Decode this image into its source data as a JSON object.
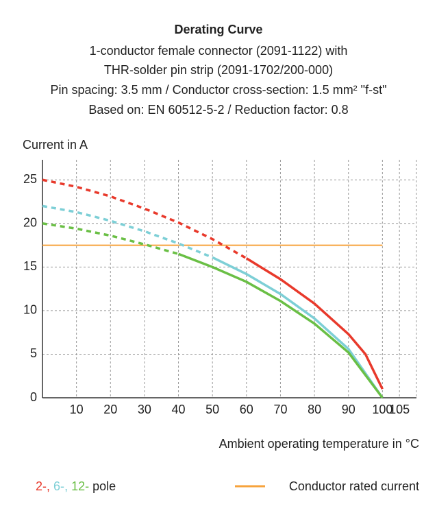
{
  "chart_data": {
    "type": "line",
    "title": "Derating Curve",
    "subtitle": [
      "1-conductor female connector (2091-1122) with",
      "THR-solder pin strip (2091-1702/200-000)",
      "Pin spacing: 3.5 mm / Conductor cross-section: 1.5 mm² \"f-st\"",
      "Based on: EN 60512-5-2 / Reduction factor: 0.8"
    ],
    "y_label": "Current in A",
    "x_label": "Ambient operating temperature in °C",
    "xlim": [
      0,
      110
    ],
    "xticks": [
      10,
      20,
      30,
      40,
      50,
      60,
      70,
      80,
      90,
      100,
      105
    ],
    "ylim": [
      0,
      27.3
    ],
    "yticks": [
      0,
      5,
      10,
      15,
      20,
      25
    ],
    "grid": true,
    "legend_separator": ",",
    "legend_suffix": "pole",
    "series": [
      {
        "name": "2-",
        "color": "#e8392b",
        "x": [
          0,
          10,
          20,
          30,
          40,
          50,
          60,
          70,
          80,
          90,
          95,
          100
        ],
        "values": [
          25,
          24.2,
          23.1,
          21.7,
          20.1,
          18.2,
          16,
          13.6,
          10.8,
          7.3,
          5,
          1
        ]
      },
      {
        "name": "6-",
        "color": "#7dcfd6",
        "x": [
          0,
          10,
          20,
          30,
          40,
          50,
          60,
          70,
          80,
          90,
          100
        ],
        "values": [
          22,
          21.3,
          20.3,
          19.1,
          17.7,
          16.1,
          14.2,
          11.9,
          9.1,
          5.6,
          0
        ]
      },
      {
        "name": "12-",
        "color": "#6abf45",
        "x": [
          0,
          10,
          20,
          30,
          40,
          50,
          60,
          70,
          80,
          90,
          100
        ],
        "values": [
          20,
          19.4,
          18.6,
          17.6,
          16.5,
          15,
          13.3,
          11.1,
          8.5,
          5.2,
          0
        ]
      },
      {
        "name": "Conductor rated current",
        "color": "#f7a33c",
        "x": [
          0,
          100
        ],
        "values": [
          17.5,
          17.5
        ]
      }
    ]
  }
}
